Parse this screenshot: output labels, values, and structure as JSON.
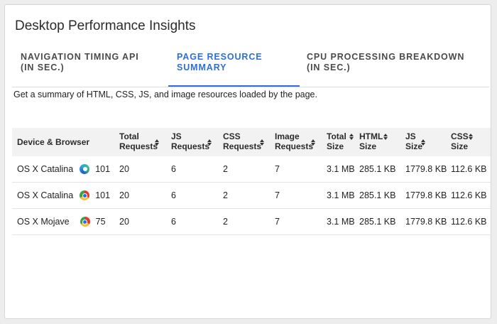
{
  "panel": {
    "title": "Desktop Performance Insights"
  },
  "tabs": [
    {
      "label": "NAVIGATION TIMING API (in sec.)",
      "active": false
    },
    {
      "label": "PAGE RESOURCE SUMMARY",
      "active": true
    },
    {
      "label": "CPU PROCESSING BREAKDOWN (in sec.)",
      "active": false
    }
  ],
  "summary_text": "Get a summary of HTML, CSS, JS, and image resources loaded by the page.",
  "table": {
    "columns": [
      {
        "line1": "Device & Browser",
        "line2": ""
      },
      {
        "line1": "Total",
        "line2": "Requests"
      },
      {
        "line1": "JS",
        "line2": "Requests"
      },
      {
        "line1": "CSS",
        "line2": "Requests"
      },
      {
        "line1": "Image",
        "line2": "Requests"
      },
      {
        "line1": "Total",
        "line2": "Size"
      },
      {
        "line1": "HTML",
        "line2": "Size"
      },
      {
        "line1": "JS",
        "line2": "Size"
      },
      {
        "line1": "CSS",
        "line2": "Size"
      }
    ],
    "rows": [
      {
        "device": "OS X Catalina",
        "browser_icon": "edge-icon",
        "browser_version": "101",
        "total_requests": "20",
        "js_requests": "6",
        "css_requests": "2",
        "image_requests": "7",
        "total_size": "3.1 MB",
        "html_size": "285.1 KB",
        "js_size": "1779.8 KB",
        "css_size": "112.6 KB"
      },
      {
        "device": "OS X Catalina",
        "browser_icon": "chrome-icon",
        "browser_version": "101",
        "total_requests": "20",
        "js_requests": "6",
        "css_requests": "2",
        "image_requests": "7",
        "total_size": "3.1 MB",
        "html_size": "285.1 KB",
        "js_size": "1779.8 KB",
        "css_size": "112.6 KB"
      },
      {
        "device": "OS X Mojave",
        "browser_icon": "chrome-icon",
        "browser_version": "75",
        "total_requests": "20",
        "js_requests": "6",
        "css_requests": "2",
        "image_requests": "7",
        "total_size": "3.1 MB",
        "html_size": "285.1 KB",
        "js_size": "1779.8 KB",
        "css_size": "112.6 KB"
      }
    ]
  },
  "colors": {
    "accent": "#2d6fd8",
    "header_bg": "#f2f2f2",
    "page_bg": "#ededed"
  }
}
